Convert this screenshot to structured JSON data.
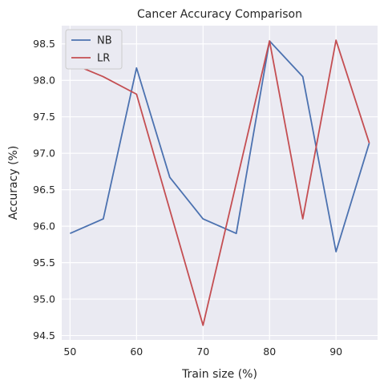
{
  "chart_data": {
    "type": "line",
    "title": "Cancer Accuracy Comparison",
    "xlabel": "Train size (%)",
    "ylabel": "Accuracy (%)",
    "x": [
      50,
      55,
      60,
      65,
      70,
      75,
      80,
      85,
      90,
      95
    ],
    "series": [
      {
        "name": "NB",
        "color": "#4c72b0",
        "values": [
          95.9,
          96.1,
          98.17,
          96.67,
          96.1,
          95.9,
          98.54,
          98.05,
          95.65,
          97.14
        ]
      },
      {
        "name": "LR",
        "color": "#c44e52",
        "values": [
          98.24,
          98.05,
          97.81,
          null,
          94.64,
          null,
          98.54,
          96.1,
          98.55,
          97.14
        ]
      }
    ],
    "xlim": [
      48.75,
      96.25
    ],
    "ylim": [
      94.44,
      98.75
    ],
    "xticks": [
      50,
      60,
      70,
      80,
      90
    ],
    "yticks": [
      94.5,
      95.0,
      95.5,
      96.0,
      96.5,
      97.0,
      97.5,
      98.0,
      98.5
    ],
    "grid": true,
    "legend": "top-left"
  }
}
